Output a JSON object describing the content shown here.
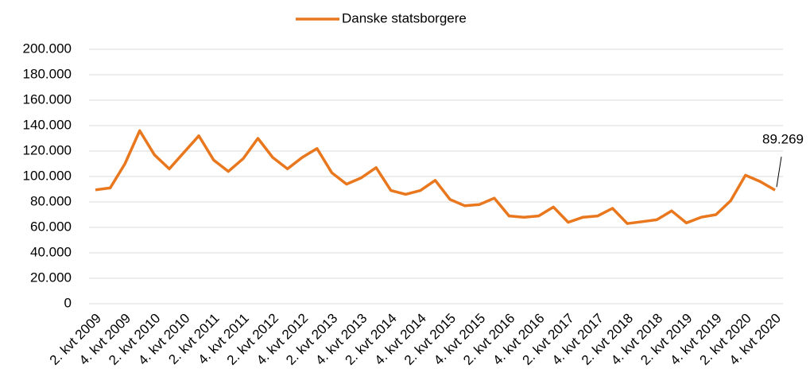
{
  "chart_data": {
    "type": "line",
    "categories": [
      "2. kvt 2009",
      null,
      "4. kvt 2009",
      null,
      "2. kvt 2010",
      null,
      "4. kvt 2010",
      null,
      "2. kvt 2011",
      null,
      "4. kvt 2011",
      null,
      "2. kvt 2012",
      null,
      "4. kvt 2012",
      null,
      "2. kvt 2013",
      null,
      "4. kvt 2013",
      null,
      "2. kvt 2014",
      null,
      "4. kvt 2014",
      null,
      "2. kvt 2015",
      null,
      "4. kvt 2015",
      null,
      "2. kvt 2016",
      null,
      "4. kvt 2016",
      null,
      "2. kvt 2017",
      null,
      "4. kvt 2017",
      null,
      "2. kvt 2018",
      null,
      "4. kvt 2018",
      null,
      "2. kvt 2019",
      null,
      "4. kvt 2019",
      null,
      "2. kvt 2020",
      null,
      "4. kvt 2020"
    ],
    "series": [
      {
        "name": "Danske statsborgere",
        "color": "#e8771e",
        "values": [
          89500,
          91000,
          110000,
          136000,
          117000,
          106000,
          119000,
          132000,
          113000,
          104000,
          114000,
          130000,
          115000,
          106000,
          115000,
          122000,
          103000,
          94000,
          99000,
          107000,
          89000,
          86000,
          89000,
          97000,
          82000,
          77000,
          78000,
          83000,
          69000,
          68000,
          69000,
          76000,
          64000,
          68000,
          69000,
          75000,
          63000,
          64500,
          66000,
          73000,
          63500,
          68000,
          70000,
          81000,
          101000,
          96000,
          89269
        ],
        "value_labels": [
          null,
          null,
          null,
          null,
          null,
          null,
          null,
          null,
          null,
          null,
          null,
          null,
          null,
          null,
          null,
          null,
          null,
          null,
          null,
          null,
          null,
          null,
          null,
          null,
          null,
          null,
          null,
          null,
          null,
          null,
          null,
          null,
          null,
          null,
          null,
          null,
          null,
          null,
          null,
          null,
          null,
          null,
          null,
          null,
          null,
          null,
          "89.269"
        ]
      }
    ],
    "ylim": [
      0,
      200000
    ],
    "yticks": [
      0,
      {
        "value": 20000,
        "label": "20.000"
      },
      {
        "value": 40000,
        "label": "40.000"
      },
      {
        "value": 60000,
        "label": "60.000"
      },
      {
        "value": 80000,
        "label": "80.000"
      },
      {
        "value": 100000,
        "label": "100.000"
      },
      {
        "value": 120000,
        "label": "120.000"
      },
      {
        "value": 140000,
        "label": "140.000"
      },
      {
        "value": 160000,
        "label": "160.000"
      },
      {
        "value": 180000,
        "label": "180.000"
      },
      {
        "value": 200000,
        "label": "200.000"
      }
    ],
    "grid": true,
    "legend": "top"
  }
}
